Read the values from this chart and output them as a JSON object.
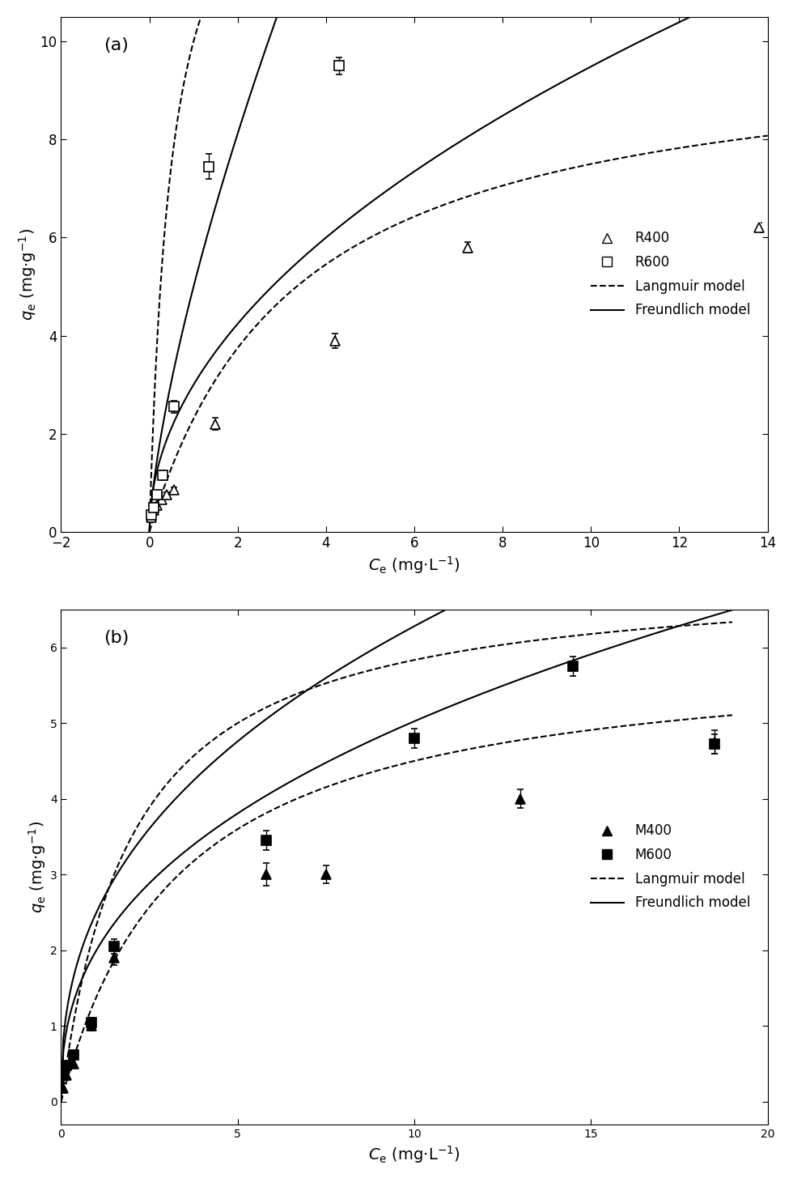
{
  "panel_a": {
    "label": "(a)",
    "R400_x": [
      0.05,
      0.1,
      0.18,
      0.28,
      0.4,
      0.55,
      1.5,
      4.2,
      7.2,
      13.8
    ],
    "R400_y": [
      0.3,
      0.45,
      0.55,
      0.65,
      0.75,
      0.85,
      2.2,
      3.9,
      5.8,
      6.2
    ],
    "R400_yerr": [
      0.06,
      0.06,
      0.05,
      0.05,
      0.05,
      0.06,
      0.12,
      0.15,
      0.1,
      0.1
    ],
    "R600_x": [
      0.05,
      0.1,
      0.18,
      0.3,
      0.55,
      1.35,
      4.3
    ],
    "R600_y": [
      0.35,
      0.5,
      0.75,
      1.15,
      2.55,
      7.45,
      9.5
    ],
    "R600_yerr": [
      0.06,
      0.06,
      0.08,
      0.1,
      0.12,
      0.25,
      0.18
    ],
    "xlim": [
      -2,
      14
    ],
    "ylim": [
      0,
      10.5
    ],
    "xticks": [
      -2,
      0,
      2,
      4,
      6,
      8,
      10,
      12,
      14
    ],
    "yticks": [
      0,
      2,
      4,
      6,
      8,
      10
    ]
  },
  "panel_b": {
    "label": "(b)",
    "M400_x": [
      0.05,
      0.15,
      0.35,
      0.85,
      1.5,
      5.8,
      7.5,
      13.0,
      18.5
    ],
    "M400_y": [
      0.18,
      0.35,
      0.5,
      1.0,
      1.9,
      3.0,
      3.0,
      4.0,
      4.75
    ],
    "M400_yerr": [
      0.06,
      0.05,
      0.05,
      0.06,
      0.1,
      0.15,
      0.12,
      0.12,
      0.15
    ],
    "M600_x": [
      0.05,
      0.15,
      0.35,
      0.85,
      1.5,
      5.8,
      10.0,
      14.5,
      18.5
    ],
    "M600_y": [
      0.35,
      0.48,
      0.62,
      1.05,
      2.05,
      3.45,
      4.8,
      5.75,
      4.72
    ],
    "M600_yerr": [
      0.05,
      0.05,
      0.05,
      0.06,
      0.1,
      0.13,
      0.13,
      0.13,
      0.13
    ],
    "xlim": [
      0,
      20
    ],
    "ylim": [
      -0.3,
      6.5
    ],
    "xticks": [
      0,
      5,
      10,
      15,
      20
    ],
    "yticks": [
      0,
      1,
      2,
      3,
      4,
      5,
      6
    ]
  },
  "xlabel": "$C$$_\\mathrm{e}$ (mg$\\cdot$L$^{-1}$)",
  "ylabel": "$q$$_\\mathrm{e}$ (mg$\\cdot$g$^{-1}$)"
}
